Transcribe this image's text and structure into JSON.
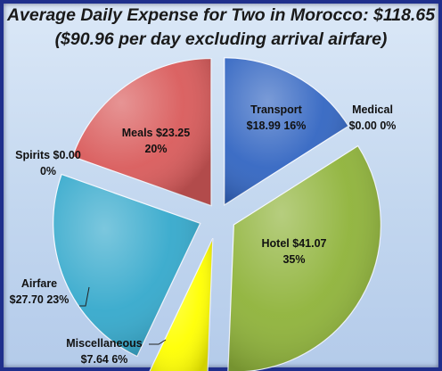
{
  "chart_data": {
    "type": "pie",
    "title": "Average Daily Expense for Two in Morocco:  $118.65",
    "subtitle": "($90.96 per day excluding arrival airfare)",
    "slices": [
      {
        "name": "Transport",
        "value": 18.99,
        "percent": 16,
        "color": "#3366c2",
        "label": [
          "Transport",
          "$18.99  16%"
        ]
      },
      {
        "name": "Medical",
        "value": 0.0,
        "percent": 0,
        "color": "#7a4fa8",
        "label": [
          "Medical",
          "$0.00  0%"
        ]
      },
      {
        "name": "Hotel",
        "value": 41.07,
        "percent": 35,
        "color": "#8fb33a",
        "label": [
          "Hotel $41.07",
          "35%"
        ]
      },
      {
        "name": "Miscellaneous",
        "value": 7.64,
        "percent": 6,
        "color": "#ffff00",
        "label": [
          "Miscellaneous",
          "$7.64  6%"
        ]
      },
      {
        "name": "Airfare",
        "value": 27.7,
        "percent": 23,
        "color": "#35a9cc",
        "label": [
          "Airfare",
          "$27.70  23%"
        ]
      },
      {
        "name": "Spirits",
        "value": 0.0,
        "percent": 0,
        "color": "#e07a1f",
        "label": [
          "Spirits $0.00",
          "0%"
        ]
      },
      {
        "name": "Meals",
        "value": 23.25,
        "percent": 20,
        "color": "#d95b5b",
        "label": [
          "Meals $23.25",
          "20%"
        ]
      }
    ]
  }
}
